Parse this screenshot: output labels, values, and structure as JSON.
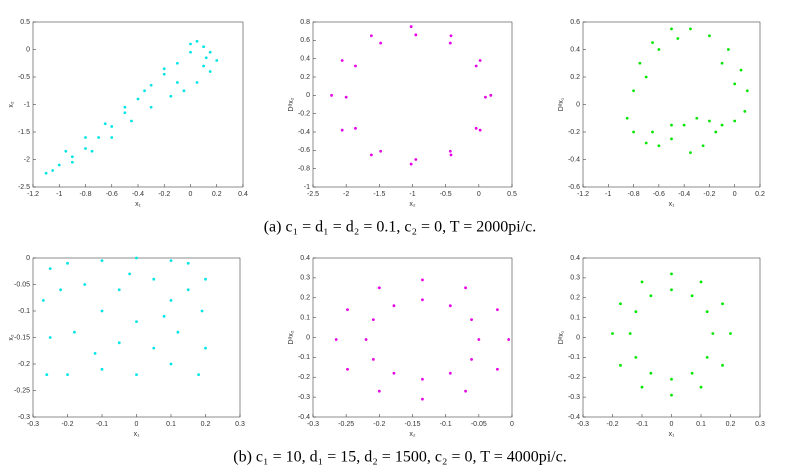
{
  "captions": [
    "(a) c₁ = d₁ = d₂ = 0.1, c₂ = 0, T = 2000pi/c.",
    "(b) c₁ = 10, d₁ = 15, d₂ = 1500, c₂ = 0, T = 4000pi/c."
  ],
  "chart_data": [
    {
      "type": "scatter",
      "xlabel": "x₁",
      "ylabel": "x₂",
      "color": "#00e5e5",
      "xlim": [
        -1.2,
        0.4
      ],
      "ylim": [
        -2.5,
        0.5
      ],
      "xticks": [
        -1.2,
        -1,
        -0.8,
        -0.6,
        -0.4,
        -0.2,
        0,
        0.2,
        0.4
      ],
      "yticks": [
        -2.5,
        -2,
        -1.5,
        -1,
        -0.5,
        0,
        0.5
      ],
      "x": [
        -1.1,
        -1.0,
        -0.9,
        -0.8,
        -0.7,
        -0.6,
        -0.5,
        -0.4,
        -0.3,
        -0.2,
        -0.1,
        0,
        0.05,
        0.1,
        0.15,
        0.2,
        0.15,
        0.05,
        -0.05,
        -0.15,
        -0.3,
        -0.45,
        -0.6,
        -0.75,
        -0.9,
        -1.05,
        -0.95,
        -0.8,
        -0.65,
        -0.5,
        -0.35,
        -0.2,
        0,
        0.1,
        -0.1,
        0.12
      ],
      "y": [
        -2.25,
        -2.1,
        -1.95,
        -1.8,
        -1.6,
        -1.4,
        -1.15,
        -0.9,
        -0.65,
        -0.45,
        -0.25,
        -0.05,
        0.15,
        0.05,
        -0.05,
        -0.2,
        -0.4,
        -0.6,
        -0.75,
        -0.85,
        -1.05,
        -1.3,
        -1.6,
        -1.85,
        -2.05,
        -2.2,
        -1.85,
        -1.6,
        -1.35,
        -1.05,
        -0.75,
        -0.35,
        0.1,
        -0.3,
        -0.6,
        -0.15
      ]
    },
    {
      "type": "scatter",
      "xlabel": "x₂",
      "ylabel": "Dᵅx₂",
      "color": "#e600e6",
      "xlim": [
        -2.5,
        0.5
      ],
      "ylim": [
        -1,
        0.8
      ],
      "xticks": [
        -2.5,
        -2,
        -1.5,
        -1,
        -0.5,
        0,
        0.5
      ],
      "yticks": [
        -1,
        -0.8,
        -0.6,
        -0.4,
        -0.2,
        0,
        0.2,
        0.4,
        0.6,
        0.8
      ],
      "x": [
        0.18,
        0.02,
        -0.42,
        -1.02,
        -1.62,
        -2.06,
        -2.22,
        -2.06,
        -1.62,
        -1.02,
        -0.42,
        0.02,
        0.1,
        -0.04,
        -0.43,
        -0.95,
        -1.48,
        -1.86,
        -2.0,
        -1.86,
        -1.48,
        -0.95,
        -0.43,
        -0.04
      ],
      "y": [
        0,
        0.38,
        0.65,
        0.75,
        0.65,
        0.38,
        0,
        -0.38,
        -0.65,
        -0.75,
        -0.65,
        -0.38,
        -0.02,
        0.32,
        0.57,
        0.66,
        0.57,
        0.32,
        -0.02,
        -0.36,
        -0.61,
        -0.7,
        -0.61,
        -0.36
      ]
    },
    {
      "type": "scatter",
      "xlabel": "x₁",
      "ylabel": "Dᵅx₁",
      "color": "#00e600",
      "xlim": [
        -1.2,
        0.2
      ],
      "ylim": [
        -0.6,
        0.6
      ],
      "xticks": [
        -1.2,
        -1,
        -0.8,
        -0.6,
        -0.4,
        -0.2,
        0,
        0.2
      ],
      "yticks": [
        -0.6,
        -0.4,
        -0.2,
        0,
        0.2,
        0.4,
        0.6
      ],
      "x": [
        -0.85,
        -0.8,
        -0.75,
        -0.65,
        -0.5,
        -0.35,
        -0.2,
        -0.05,
        0.05,
        0.1,
        0.08,
        0,
        -0.1,
        -0.2,
        -0.3,
        -0.4,
        -0.5,
        -0.6,
        -0.7,
        -0.8,
        -0.7,
        -0.6,
        -0.45,
        -0.1,
        0,
        -0.15,
        -0.25,
        -0.35,
        -0.5,
        -0.65
      ],
      "y": [
        -0.1,
        0.1,
        0.3,
        0.45,
        0.55,
        0.55,
        0.5,
        0.4,
        0.25,
        0.1,
        -0.05,
        -0.12,
        -0.15,
        -0.12,
        -0.1,
        -0.15,
        -0.25,
        -0.3,
        -0.28,
        -0.2,
        0.2,
        0.4,
        0.48,
        0.3,
        0.15,
        -0.2,
        -0.3,
        -0.35,
        -0.15,
        -0.2
      ]
    },
    {
      "type": "scatter",
      "xlabel": "x₁",
      "ylabel": "x₂",
      "color": "#00e5e5",
      "xlim": [
        -0.3,
        0.3
      ],
      "ylim": [
        -0.3,
        0
      ],
      "xticks": [
        -0.3,
        -0.2,
        -0.1,
        0,
        0.1,
        0.2,
        0.3
      ],
      "yticks": [
        -0.3,
        -0.25,
        -0.2,
        -0.15,
        -0.1,
        -0.05,
        0
      ],
      "x": [
        -0.25,
        -0.2,
        -0.1,
        0,
        0.1,
        0.15,
        0.2,
        0.19,
        0.2,
        0.18,
        0.1,
        0,
        -0.1,
        -0.2,
        -0.26,
        -0.25,
        -0.27,
        -0.15,
        -0.05,
        0.05,
        0.1,
        -0.1,
        0,
        0.12,
        -0.18,
        -0.05,
        0.05,
        -0.12,
        0.15,
        -0.22,
        0.08,
        -0.02
      ],
      "y": [
        -0.02,
        -0.01,
        -0.005,
        0,
        -0.005,
        -0.01,
        -0.04,
        -0.1,
        -0.17,
        -0.22,
        -0.2,
        -0.22,
        -0.21,
        -0.22,
        -0.22,
        -0.15,
        -0.08,
        -0.05,
        -0.06,
        -0.04,
        -0.08,
        -0.1,
        -0.12,
        -0.14,
        -0.14,
        -0.16,
        -0.17,
        -0.18,
        -0.06,
        -0.06,
        -0.11,
        -0.03
      ]
    },
    {
      "type": "scatter",
      "xlabel": "x₂",
      "ylabel": "Dᵅx₂",
      "color": "#e600e6",
      "xlim": [
        -0.3,
        0
      ],
      "ylim": [
        -0.4,
        0.4
      ],
      "xticks": [
        -0.3,
        -0.25,
        -0.2,
        -0.15,
        -0.1,
        -0.05,
        0
      ],
      "yticks": [
        -0.4,
        -0.3,
        -0.2,
        -0.1,
        0,
        0.1,
        0.2,
        0.3,
        0.4
      ],
      "x": [
        -0.005,
        -0.022,
        -0.07,
        -0.135,
        -0.2,
        -0.248,
        -0.265,
        -0.248,
        -0.2,
        -0.135,
        -0.07,
        -0.022,
        -0.05,
        -0.061,
        -0.093,
        -0.135,
        -0.178,
        -0.209,
        -0.22,
        -0.209,
        -0.178,
        -0.135,
        -0.093,
        -0.061
      ],
      "y": [
        -0.01,
        0.14,
        0.25,
        0.29,
        0.25,
        0.14,
        -0.01,
        -0.16,
        -0.27,
        -0.31,
        -0.27,
        -0.16,
        -0.01,
        0.09,
        0.16,
        0.19,
        0.16,
        0.09,
        -0.01,
        -0.11,
        -0.18,
        -0.21,
        -0.18,
        -0.11
      ]
    },
    {
      "type": "scatter",
      "xlabel": "x₁",
      "ylabel": "Dᵅx₁",
      "color": "#00e600",
      "xlim": [
        -0.3,
        0.3
      ],
      "ylim": [
        -0.4,
        0.4
      ],
      "xticks": [
        -0.3,
        -0.2,
        -0.1,
        0,
        0.1,
        0.2,
        0.3
      ],
      "yticks": [
        -0.4,
        -0.3,
        -0.2,
        -0.1,
        0,
        0.1,
        0.2,
        0.3,
        0.4
      ],
      "x": [
        0.2,
        0.173,
        0.1,
        0,
        -0.1,
        -0.173,
        -0.2,
        -0.173,
        -0.1,
        0,
        0.1,
        0.173,
        0.14,
        0.121,
        0.07,
        0,
        -0.07,
        -0.121,
        -0.14,
        -0.121,
        -0.07,
        0,
        0.07,
        0.121
      ],
      "y": [
        0.02,
        0.17,
        0.28,
        0.32,
        0.28,
        0.17,
        0.02,
        -0.14,
        -0.25,
        -0.29,
        -0.25,
        -0.14,
        0.02,
        0.13,
        0.21,
        0.24,
        0.21,
        0.13,
        0.02,
        -0.1,
        -0.18,
        -0.21,
        -0.18,
        -0.1
      ]
    }
  ]
}
